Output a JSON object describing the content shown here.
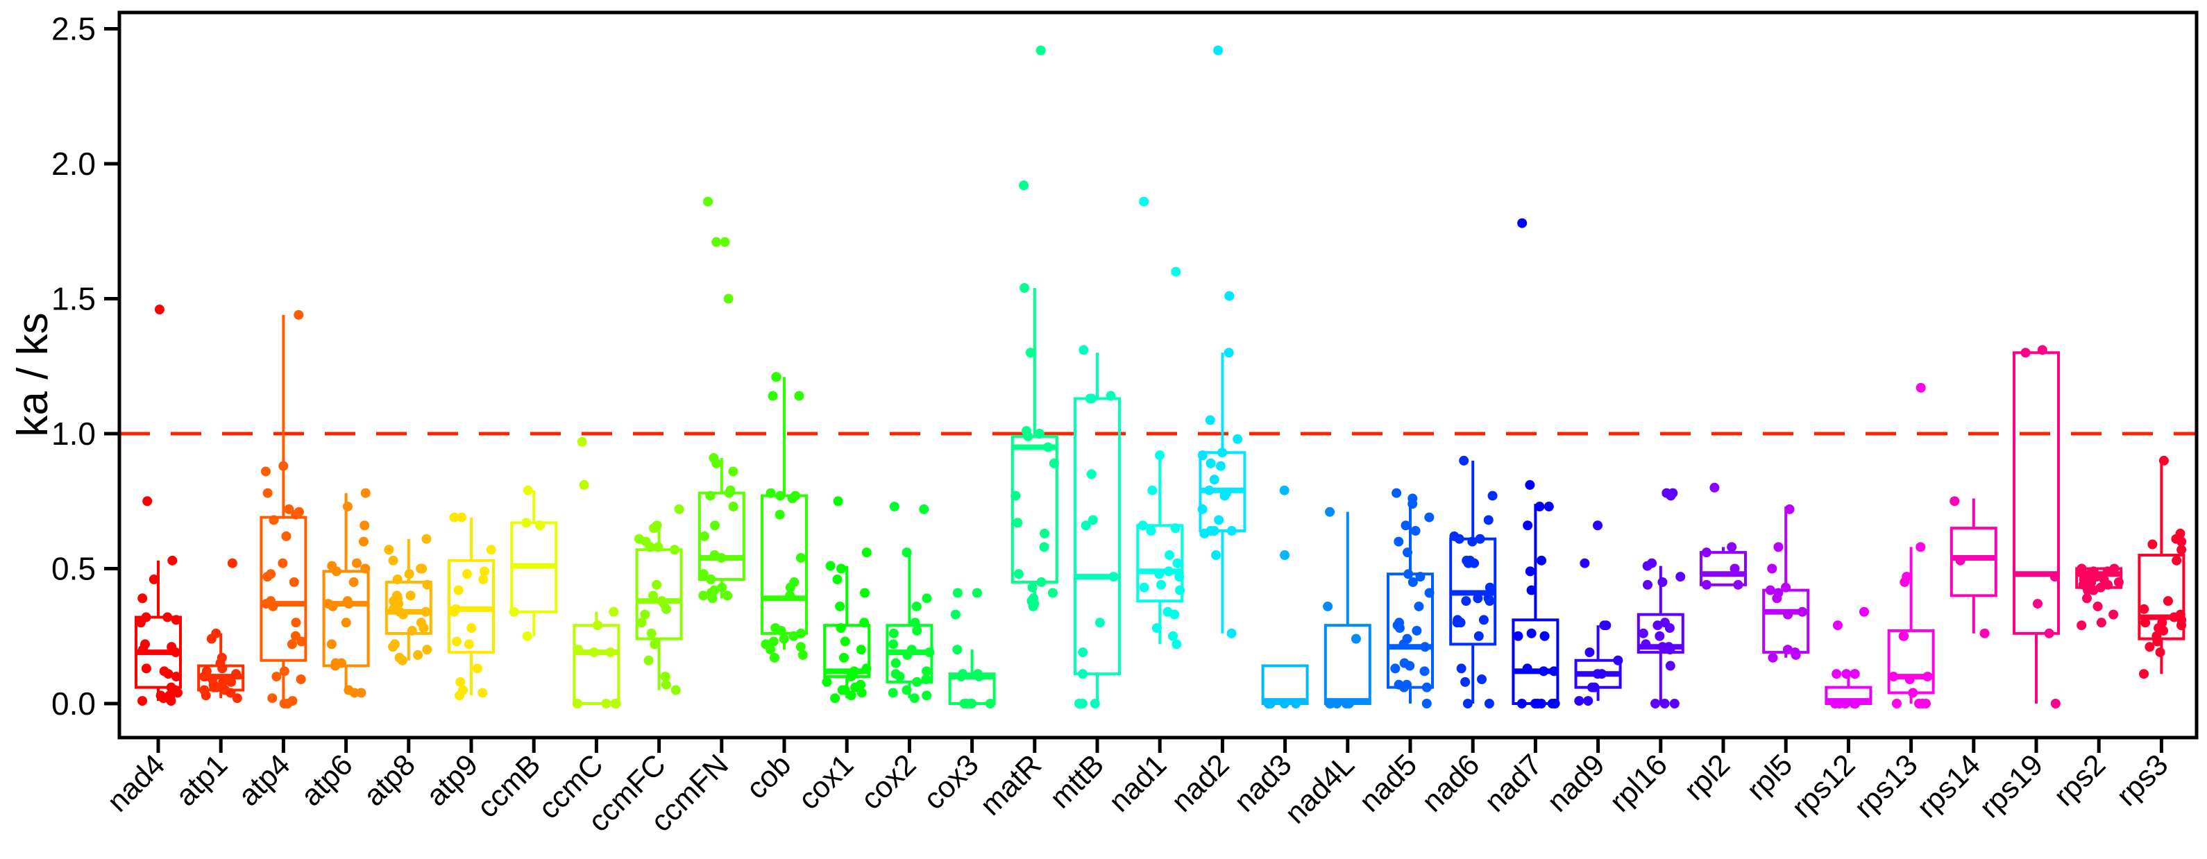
{
  "chart_data": {
    "type": "boxplot",
    "title": "",
    "ylabel": "ka / ks",
    "xlabel": "",
    "ylim": [
      -0.12,
      2.56
    ],
    "yticks": [
      0.0,
      0.5,
      1.0,
      1.5,
      2.0,
      2.5
    ],
    "ytick_labels": [
      "0.0",
      "0.5",
      "1.0",
      "1.5",
      "2.0",
      "2.5"
    ],
    "grid": false,
    "legend": "none",
    "ref_line": {
      "y": 1.0,
      "style": "dashed",
      "color": "#FF2400"
    },
    "categories": [
      "nad4",
      "atp1",
      "atp4",
      "atp6",
      "atp8",
      "atp9",
      "ccmB",
      "ccmC",
      "ccmFC",
      "ccmFN",
      "cob",
      "cox1",
      "cox2",
      "cox3",
      "matR",
      "mttB",
      "nad1",
      "nad2",
      "nad3",
      "nad4L",
      "nad5",
      "nad6",
      "nad7",
      "nad9",
      "rpl16",
      "rpl2",
      "rpl5",
      "rps12",
      "rps13",
      "rps14",
      "rps19",
      "rps2",
      "rps3"
    ],
    "series": [
      {
        "name": "nad4",
        "color": "#FF0000",
        "box": {
          "low": 0.01,
          "q1": 0.06,
          "med": 0.19,
          "q3": 0.32,
          "high": 0.53
        },
        "points": [
          0.01,
          0.01,
          0.02,
          0.02,
          0.03,
          0.03,
          0.04,
          0.05,
          0.06,
          0.1,
          0.11,
          0.12,
          0.13,
          0.19,
          0.2,
          0.21,
          0.22,
          0.3,
          0.31,
          0.32,
          0.32,
          0.39,
          0.46,
          0.53,
          0.75,
          1.46
        ]
      },
      {
        "name": "atp1",
        "color": "#FF2E00",
        "box": {
          "low": 0.02,
          "q1": 0.05,
          "med": 0.1,
          "q3": 0.14,
          "high": 0.26
        },
        "points": [
          0.02,
          0.03,
          0.04,
          0.05,
          0.05,
          0.06,
          0.06,
          0.07,
          0.08,
          0.08,
          0.09,
          0.1,
          0.1,
          0.11,
          0.12,
          0.13,
          0.15,
          0.17,
          0.24,
          0.26,
          0.52
        ]
      },
      {
        "name": "atp4",
        "color": "#FF5D00",
        "box": {
          "low": 0.0,
          "q1": 0.16,
          "med": 0.37,
          "q3": 0.69,
          "high": 1.44
        },
        "points": [
          0.0,
          0.0,
          0.01,
          0.02,
          0.09,
          0.1,
          0.12,
          0.22,
          0.23,
          0.25,
          0.3,
          0.36,
          0.37,
          0.38,
          0.45,
          0.47,
          0.48,
          0.52,
          0.62,
          0.68,
          0.7,
          0.71,
          0.72,
          0.78,
          0.86,
          0.88,
          1.44
        ]
      },
      {
        "name": "atp6",
        "color": "#FF8B00",
        "box": {
          "low": 0.04,
          "q1": 0.14,
          "med": 0.37,
          "q3": 0.49,
          "high": 0.78
        },
        "points": [
          0.04,
          0.04,
          0.05,
          0.14,
          0.15,
          0.15,
          0.22,
          0.3,
          0.36,
          0.37,
          0.37,
          0.38,
          0.45,
          0.49,
          0.5,
          0.51,
          0.52,
          0.6,
          0.66,
          0.73,
          0.78
        ]
      },
      {
        "name": "atp8",
        "color": "#FFB900",
        "box": {
          "low": 0.16,
          "q1": 0.26,
          "med": 0.34,
          "q3": 0.45,
          "high": 0.61
        },
        "points": [
          0.16,
          0.17,
          0.18,
          0.2,
          0.21,
          0.22,
          0.27,
          0.28,
          0.3,
          0.33,
          0.34,
          0.34,
          0.35,
          0.37,
          0.38,
          0.39,
          0.4,
          0.4,
          0.44,
          0.46,
          0.48,
          0.5,
          0.5,
          0.53,
          0.57,
          0.61
        ]
      },
      {
        "name": "atp9",
        "color": "#FFE800",
        "box": {
          "low": 0.03,
          "q1": 0.19,
          "med": 0.35,
          "q3": 0.53,
          "high": 0.69
        },
        "points": [
          0.03,
          0.04,
          0.05,
          0.08,
          0.13,
          0.22,
          0.23,
          0.28,
          0.34,
          0.35,
          0.42,
          0.46,
          0.48,
          0.49,
          0.57,
          0.69,
          0.69
        ]
      },
      {
        "name": "ccmB",
        "color": "#E8FF00",
        "box": {
          "low": 0.25,
          "q1": 0.34,
          "med": 0.51,
          "q3": 0.67,
          "high": 0.79
        },
        "points": [
          0.25,
          0.34,
          0.66,
          0.67,
          0.79
        ]
      },
      {
        "name": "ccmC",
        "color": "#B9FF00",
        "box": {
          "low": 0.0,
          "q1": 0.0,
          "med": 0.19,
          "q3": 0.29,
          "high": 0.34
        },
        "points": [
          0.0,
          0.0,
          0.0,
          0.0,
          0.19,
          0.19,
          0.2,
          0.29,
          0.34,
          0.81,
          0.97
        ]
      },
      {
        "name": "ccmFC",
        "color": "#8BFF00",
        "box": {
          "low": 0.05,
          "q1": 0.24,
          "med": 0.38,
          "q3": 0.57,
          "high": 0.66
        },
        "points": [
          0.05,
          0.07,
          0.1,
          0.16,
          0.22,
          0.26,
          0.3,
          0.33,
          0.35,
          0.37,
          0.38,
          0.4,
          0.44,
          0.57,
          0.58,
          0.58,
          0.6,
          0.61,
          0.65,
          0.66,
          0.72
        ]
      },
      {
        "name": "ccmFN",
        "color": "#5DFF00",
        "box": {
          "low": 0.39,
          "q1": 0.46,
          "med": 0.54,
          "q3": 0.78,
          "high": 0.91
        },
        "points": [
          0.39,
          0.4,
          0.4,
          0.41,
          0.42,
          0.43,
          0.46,
          0.48,
          0.54,
          0.55,
          0.62,
          0.66,
          0.73,
          0.77,
          0.78,
          0.79,
          0.86,
          0.89,
          0.91,
          1.5,
          1.71,
          1.71,
          1.86
        ]
      },
      {
        "name": "cob",
        "color": "#2EFF00",
        "box": {
          "low": 0.2,
          "q1": 0.26,
          "med": 0.39,
          "q3": 0.77,
          "high": 1.21
        },
        "points": [
          0.17,
          0.18,
          0.2,
          0.21,
          0.22,
          0.23,
          0.24,
          0.25,
          0.26,
          0.27,
          0.28,
          0.4,
          0.43,
          0.45,
          0.54,
          0.7,
          0.76,
          0.77,
          0.77,
          0.78,
          1.14,
          1.14,
          1.21,
          1.21
        ]
      },
      {
        "name": "cox1",
        "color": "#00FF00",
        "box": {
          "low": 0.02,
          "q1": 0.1,
          "med": 0.12,
          "q3": 0.29,
          "high": 0.51
        },
        "points": [
          0.02,
          0.03,
          0.04,
          0.05,
          0.05,
          0.06,
          0.07,
          0.08,
          0.1,
          0.11,
          0.12,
          0.13,
          0.17,
          0.2,
          0.23,
          0.28,
          0.3,
          0.36,
          0.41,
          0.46,
          0.5,
          0.51,
          0.56,
          0.75
        ]
      },
      {
        "name": "cox2",
        "color": "#00FF2E",
        "box": {
          "low": 0.02,
          "q1": 0.08,
          "med": 0.19,
          "q3": 0.29,
          "high": 0.56
        },
        "points": [
          0.02,
          0.03,
          0.04,
          0.05,
          0.08,
          0.09,
          0.1,
          0.11,
          0.12,
          0.15,
          0.18,
          0.19,
          0.2,
          0.22,
          0.26,
          0.27,
          0.3,
          0.36,
          0.39,
          0.56,
          0.72,
          0.73
        ]
      },
      {
        "name": "cox3",
        "color": "#00FF5D",
        "box": {
          "low": 0.0,
          "q1": 0.0,
          "med": 0.1,
          "q3": 0.11,
          "high": 0.2
        },
        "points": [
          0.0,
          0.0,
          0.0,
          0.0,
          0.0,
          0.1,
          0.1,
          0.11,
          0.11,
          0.2,
          0.33,
          0.41,
          0.41
        ]
      },
      {
        "name": "matR",
        "color": "#00FF8B",
        "box": {
          "low": 0.36,
          "q1": 0.45,
          "med": 0.95,
          "q3": 0.99,
          "high": 1.54
        },
        "points": [
          0.36,
          0.37,
          0.38,
          0.39,
          0.41,
          0.43,
          0.45,
          0.48,
          0.58,
          0.63,
          0.67,
          0.77,
          0.89,
          0.95,
          0.99,
          1.0,
          1.01,
          1.3,
          1.54,
          1.92,
          2.42
        ]
      },
      {
        "name": "mttB",
        "color": "#00FFB9",
        "box": {
          "low": 0.0,
          "q1": 0.11,
          "med": 0.47,
          "q3": 1.13,
          "high": 1.3
        },
        "points": [
          0.0,
          0.0,
          0.0,
          0.11,
          0.19,
          0.3,
          0.47,
          0.66,
          0.68,
          0.85,
          1.13,
          1.13,
          1.14,
          1.31
        ]
      },
      {
        "name": "nad1",
        "color": "#00FFE8",
        "box": {
          "low": 0.22,
          "q1": 0.38,
          "med": 0.49,
          "q3": 0.66,
          "high": 0.92
        },
        "points": [
          0.22,
          0.25,
          0.28,
          0.33,
          0.34,
          0.42,
          0.43,
          0.44,
          0.47,
          0.48,
          0.49,
          0.52,
          0.55,
          0.64,
          0.65,
          0.66,
          0.79,
          0.92,
          1.6,
          1.86
        ]
      },
      {
        "name": "nad2",
        "color": "#00E8FF",
        "box": {
          "low": 0.26,
          "q1": 0.64,
          "med": 0.79,
          "q3": 0.93,
          "high": 1.3
        },
        "points": [
          0.26,
          0.55,
          0.63,
          0.64,
          0.64,
          0.64,
          0.68,
          0.72,
          0.77,
          0.78,
          0.78,
          0.79,
          0.83,
          0.88,
          0.89,
          0.92,
          0.93,
          0.98,
          1.05,
          1.3,
          1.51,
          2.42
        ]
      },
      {
        "name": "nad3",
        "color": "#00B9FF",
        "box": {
          "low": 0.0,
          "q1": 0.0,
          "med": 0.01,
          "q3": 0.14,
          "high": 0.14
        },
        "points": [
          0.0,
          0.0,
          0.0,
          0.0,
          0.55,
          0.79
        ]
      },
      {
        "name": "nad4L",
        "color": "#008BFF",
        "box": {
          "low": 0.0,
          "q1": 0.0,
          "med": 0.01,
          "q3": 0.29,
          "high": 0.71
        },
        "points": [
          0.0,
          0.0,
          0.0,
          0.0,
          0.0,
          0.24,
          0.36,
          0.71
        ]
      },
      {
        "name": "nad5",
        "color": "#005DFF",
        "box": {
          "low": 0.0,
          "q1": 0.06,
          "med": 0.21,
          "q3": 0.48,
          "high": 0.76
        },
        "points": [
          0.0,
          0.06,
          0.06,
          0.07,
          0.07,
          0.12,
          0.13,
          0.14,
          0.15,
          0.21,
          0.22,
          0.24,
          0.27,
          0.28,
          0.29,
          0.3,
          0.36,
          0.41,
          0.45,
          0.47,
          0.48,
          0.56,
          0.6,
          0.64,
          0.66,
          0.69,
          0.74,
          0.76,
          0.78
        ]
      },
      {
        "name": "nad6",
        "color": "#002EFF",
        "box": {
          "low": 0.0,
          "q1": 0.22,
          "med": 0.41,
          "q3": 0.61,
          "high": 0.9
        },
        "points": [
          0.0,
          0.0,
          0.08,
          0.09,
          0.13,
          0.25,
          0.3,
          0.3,
          0.31,
          0.31,
          0.38,
          0.38,
          0.39,
          0.39,
          0.43,
          0.52,
          0.52,
          0.53,
          0.53,
          0.6,
          0.61,
          0.61,
          0.62,
          0.68,
          0.77,
          0.9
        ]
      },
      {
        "name": "nad7",
        "color": "#0000FF",
        "box": {
          "low": 0.0,
          "q1": 0.0,
          "med": 0.12,
          "q3": 0.31,
          "high": 0.74
        },
        "points": [
          0.0,
          0.0,
          0.0,
          0.0,
          0.0,
          0.0,
          0.12,
          0.12,
          0.13,
          0.25,
          0.25,
          0.26,
          0.42,
          0.49,
          0.53,
          0.66,
          0.73,
          0.73,
          0.81,
          1.78
        ]
      },
      {
        "name": "nad9",
        "color": "#2E00FF",
        "box": {
          "low": 0.01,
          "q1": 0.06,
          "med": 0.11,
          "q3": 0.16,
          "high": 0.29
        },
        "points": [
          0.01,
          0.01,
          0.06,
          0.06,
          0.11,
          0.11,
          0.16,
          0.19,
          0.29,
          0.29,
          0.52,
          0.66
        ]
      },
      {
        "name": "rpl16",
        "color": "#5D00FF",
        "box": {
          "low": 0.0,
          "q1": 0.19,
          "med": 0.21,
          "q3": 0.33,
          "high": 0.51
        },
        "points": [
          0.0,
          0.0,
          0.0,
          0.14,
          0.2,
          0.21,
          0.21,
          0.22,
          0.25,
          0.26,
          0.28,
          0.29,
          0.3,
          0.44,
          0.45,
          0.47,
          0.51,
          0.52,
          0.77,
          0.78,
          0.78
        ]
      },
      {
        "name": "rpl2",
        "color": "#8B00FF",
        "box": {
          "low": 0.44,
          "q1": 0.44,
          "med": 0.48,
          "q3": 0.56,
          "high": 0.58
        },
        "points": [
          0.44,
          0.44,
          0.5,
          0.56,
          0.58,
          0.8
        ]
      },
      {
        "name": "rpl5",
        "color": "#B900FF",
        "box": {
          "low": 0.17,
          "q1": 0.19,
          "med": 0.34,
          "q3": 0.42,
          "high": 0.73
        },
        "points": [
          0.17,
          0.18,
          0.19,
          0.2,
          0.33,
          0.34,
          0.39,
          0.41,
          0.42,
          0.43,
          0.5,
          0.58,
          0.72
        ]
      },
      {
        "name": "rps12",
        "color": "#E800FF",
        "box": {
          "low": 0.0,
          "q1": 0.0,
          "med": 0.01,
          "q3": 0.06,
          "high": 0.11
        },
        "points": [
          0.0,
          0.0,
          0.0,
          0.0,
          0.0,
          0.11,
          0.11,
          0.11,
          0.11,
          0.29,
          0.34
        ]
      },
      {
        "name": "rps13",
        "color": "#FF00E8",
        "box": {
          "low": 0.0,
          "q1": 0.04,
          "med": 0.1,
          "q3": 0.27,
          "high": 0.58
        },
        "points": [
          0.0,
          0.0,
          0.0,
          0.0,
          0.04,
          0.09,
          0.1,
          0.1,
          0.25,
          0.25,
          0.45,
          0.47,
          0.58,
          1.17
        ]
      },
      {
        "name": "rps14",
        "color": "#FF00B9",
        "box": {
          "low": 0.26,
          "q1": 0.4,
          "med": 0.54,
          "q3": 0.65,
          "high": 0.76
        },
        "points": [
          0.26,
          0.53,
          0.75
        ]
      },
      {
        "name": "rps19",
        "color": "#FF008B",
        "box": {
          "low": 0.0,
          "q1": 0.26,
          "med": 0.48,
          "q3": 1.3,
          "high": 1.3
        },
        "points": [
          0.0,
          0.26,
          0.37,
          0.47,
          1.3,
          1.31
        ]
      },
      {
        "name": "rps2",
        "color": "#FF005D",
        "box": {
          "low": 0.43,
          "q1": 0.43,
          "med": 0.48,
          "q3": 0.5,
          "high": 0.5
        },
        "points": [
          0.29,
          0.3,
          0.33,
          0.36,
          0.39,
          0.42,
          0.42,
          0.43,
          0.44,
          0.44,
          0.45,
          0.45,
          0.46,
          0.46,
          0.47,
          0.47,
          0.48,
          0.48,
          0.49,
          0.49,
          0.5,
          0.5
        ]
      },
      {
        "name": "rps3",
        "color": "#FF002E",
        "box": {
          "low": 0.11,
          "q1": 0.24,
          "med": 0.32,
          "q3": 0.55,
          "high": 0.9
        },
        "points": [
          0.11,
          0.19,
          0.21,
          0.23,
          0.25,
          0.27,
          0.28,
          0.29,
          0.3,
          0.3,
          0.31,
          0.32,
          0.33,
          0.35,
          0.38,
          0.53,
          0.57,
          0.59,
          0.6,
          0.61,
          0.63,
          0.9
        ]
      }
    ]
  }
}
